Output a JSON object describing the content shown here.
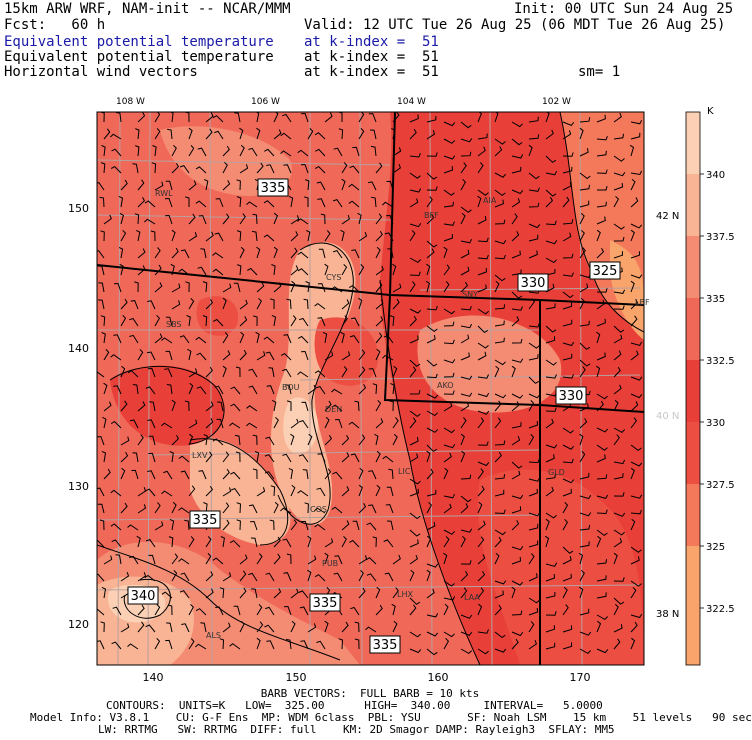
{
  "header": {
    "model_line": "15km ARW WRF, NAM-init -- NCAR/MMM",
    "init_line": "Init: 00 UTC Sun 24 Aug 25",
    "fcst_line": "Fcst:   60 h",
    "valid_line": "Valid: 12 UTC Tue 26 Aug 25 (06 MDT Tue 26 Aug 25)",
    "field1_name": "Equivalent potential temperature",
    "field1_level": "at k-index =  51",
    "field2_name": "Equivalent potential temperature",
    "field2_level": "at k-index =  51",
    "field3_name": "Horizontal wind vectors",
    "field3_level": "at k-index =  51",
    "smooth": "sm= 1"
  },
  "map": {
    "lon_labels": [
      "108 W",
      "106 W",
      "104 W",
      "102 W"
    ],
    "lat_labels": [
      "42 N",
      "40 N",
      "38 N"
    ],
    "x_ticks": [
      "140",
      "150",
      "160",
      "170"
    ],
    "y_ticks": [
      "150",
      "140",
      "130",
      "120"
    ],
    "cities": [
      "RWL",
      "BFF",
      "AIA",
      "CYS",
      "SNY",
      "LBF",
      "SBS",
      "BOU",
      "DEN",
      "AKO",
      "LXV",
      "LIC",
      "GLD",
      "COS",
      "PUB",
      "LHX",
      "LAA",
      "ALS"
    ],
    "contour_labels": [
      "335",
      "330",
      "325",
      "330",
      "335",
      "335",
      "340",
      "335"
    ],
    "colors": {
      "c_322_5": "#f8a46a",
      "c_325": "#f4785a",
      "c_327_5": "#ec4e42",
      "c_330": "#e84038",
      "c_332_5": "#f06858",
      "c_335": "#f48c74",
      "c_337_5": "#f8b494",
      "c_340": "#fcd0b4"
    }
  },
  "colorbar": {
    "unit": "K",
    "labels": [
      "340",
      "337.5",
      "335",
      "332.5",
      "330",
      "327.5",
      "325",
      "322.5"
    ]
  },
  "footer": {
    "barb_line": "BARB VECTORS:  FULL BARB = 10 kts",
    "contour_line": "CONTOURS:  UNITS=K   LOW=  325.00      HIGH=  340.00     INTERVAL=   5.0000",
    "model_info": "Model Info: V3.8.1    CU: G-F Ens  MP: WDM 6class  PBL: YSU       SF: Noah LSM    15 km    51 levels   90 sec",
    "model_info2": "LW: RRTMG   SW: RRTMG  DIFF: full    KM: 2D Smagor DAMP: Rayleigh3  SFLAY: MM5"
  }
}
